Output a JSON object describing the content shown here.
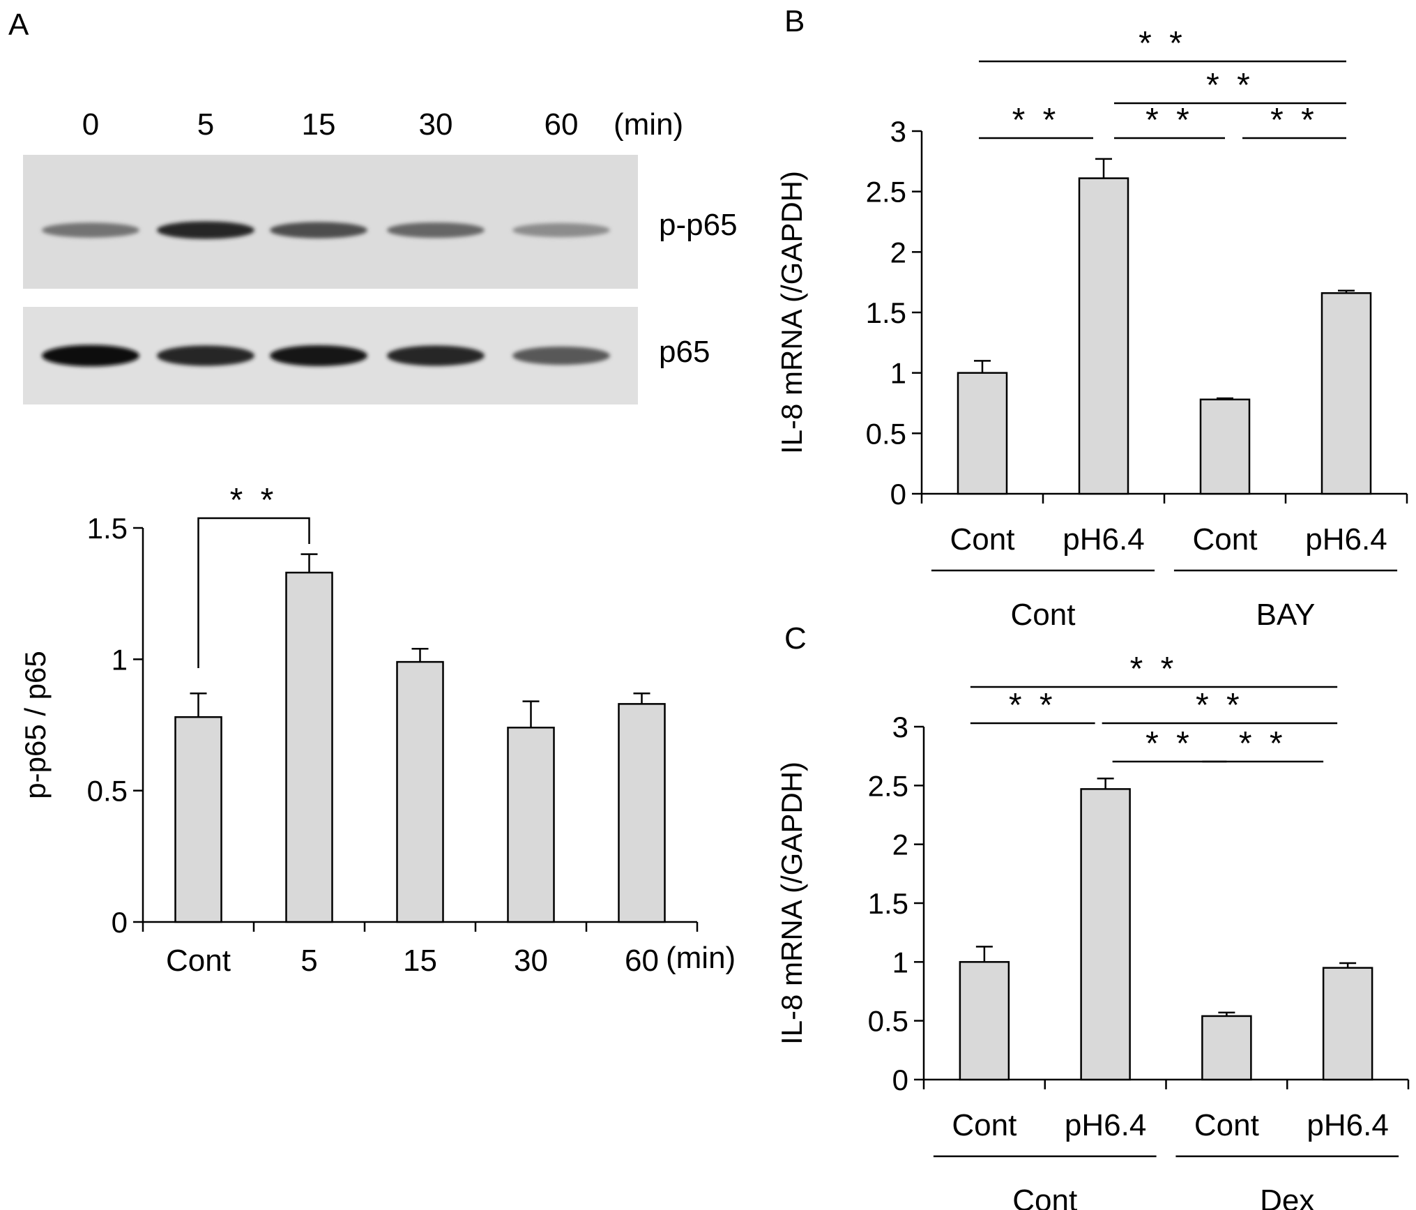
{
  "panels": {
    "A": "A",
    "B": "B",
    "C": "C"
  },
  "blot": {
    "time_labels": [
      "0",
      "5",
      "15",
      "30",
      "60"
    ],
    "time_unit": "(min)",
    "bands": [
      "p-p65",
      "p65"
    ],
    "intensity": {
      "p-p65": [
        0.55,
        0.85,
        0.7,
        0.6,
        0.45
      ],
      "p65": [
        0.95,
        0.85,
        0.9,
        0.85,
        0.65
      ]
    }
  },
  "chart_data": [
    {
      "id": "A",
      "type": "bar",
      "categories": [
        "Cont",
        "5",
        "15",
        "30",
        "60"
      ],
      "x_unit": "(min)",
      "values": [
        0.78,
        1.33,
        0.99,
        0.74,
        0.83
      ],
      "errors": [
        0.09,
        0.07,
        0.05,
        0.1,
        0.04
      ],
      "xlabel": "",
      "ylabel": "p-p65 / p65",
      "ylim": [
        0,
        1.5
      ],
      "yticks": [
        "0",
        "0.5",
        "1",
        "1.5"
      ],
      "bar_color": "#d9d9d9",
      "significance": [
        {
          "from": 0,
          "to": 1,
          "label": "* *"
        }
      ]
    },
    {
      "id": "B",
      "type": "bar",
      "categories": [
        "Cont",
        "pH6.4",
        "Cont",
        "pH6.4"
      ],
      "groups": [
        {
          "label": "Cont",
          "indices": [
            0,
            1
          ]
        },
        {
          "label": "BAY",
          "indices": [
            2,
            3
          ]
        }
      ],
      "values": [
        1.0,
        2.61,
        0.78,
        1.66
      ],
      "errors": [
        0.1,
        0.16,
        0.01,
        0.02
      ],
      "xlabel": "",
      "ylabel": "IL-8 mRNA (/GAPDH)",
      "ylim": [
        0,
        3
      ],
      "yticks": [
        "0",
        "0.5",
        "1",
        "1.5",
        "2",
        "2.5",
        "3"
      ],
      "bar_color": "#d9d9d9",
      "significance": [
        {
          "from": 0,
          "to": 3,
          "label": "* *"
        },
        {
          "from": 1,
          "to": 3,
          "label": "* *"
        },
        {
          "from": 0,
          "to": 1,
          "label": "* *"
        },
        {
          "from": 1,
          "to": 2,
          "label": "* *"
        },
        {
          "from": 2,
          "to": 3,
          "label": "* *"
        }
      ]
    },
    {
      "id": "C",
      "type": "bar",
      "categories": [
        "Cont",
        "pH6.4",
        "Cont",
        "pH6.4"
      ],
      "groups": [
        {
          "label": "Cont",
          "indices": [
            0,
            1
          ]
        },
        {
          "label": "Dex",
          "indices": [
            2,
            3
          ]
        }
      ],
      "values": [
        1.0,
        2.47,
        0.54,
        0.95
      ],
      "errors": [
        0.13,
        0.09,
        0.03,
        0.04
      ],
      "xlabel": "",
      "ylabel": "IL-8 mRNA (/GAPDH)",
      "ylim": [
        0,
        3
      ],
      "yticks": [
        "0",
        "0.5",
        "1",
        "1.5",
        "2",
        "2.5",
        "3"
      ],
      "bar_color": "#d9d9d9",
      "significance": [
        {
          "from": 0,
          "to": 3,
          "label": "* *"
        },
        {
          "from": 0,
          "to": 1,
          "label": "* *"
        },
        {
          "from": 1,
          "to": 3,
          "label": "* *"
        },
        {
          "from": 1,
          "to": 2,
          "label": "* *"
        },
        {
          "from": 2,
          "to": 3,
          "label": "* *"
        }
      ]
    }
  ]
}
